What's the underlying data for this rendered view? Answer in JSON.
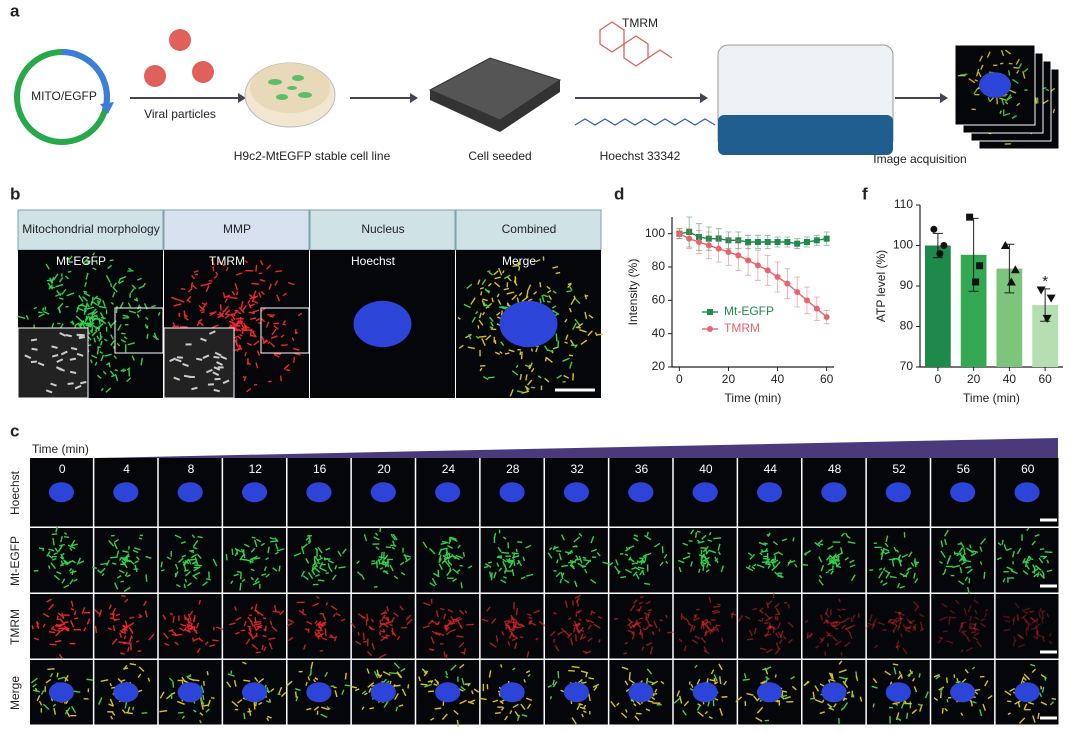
{
  "panel_a": {
    "label": "a",
    "plasmid": "MITO/EGFP",
    "virus": "Viral particles",
    "dish": "H9c2-MtEGFP stable cell line",
    "plate": "Cell seeded",
    "dye1": "TMRM",
    "dye2": "Hoechst 33342",
    "acquisition": "Image acquisition"
  },
  "panel_b": {
    "label": "b",
    "headers": [
      "Mitochondrial morphology",
      "MMP",
      "Nucleus",
      "Combined"
    ],
    "channels": [
      "Mt-EGFP",
      "TMRM",
      "Hoechst",
      "Merge"
    ]
  },
  "panel_c": {
    "label": "c",
    "axis_title": "Time (min)",
    "times": [
      0,
      4,
      8,
      12,
      16,
      20,
      24,
      28,
      32,
      36,
      40,
      44,
      48,
      52,
      56,
      60
    ],
    "rows": [
      "Hoechst",
      "Mt-EGFP",
      "TMRM",
      "Merge"
    ]
  },
  "chart_data": [
    {
      "type": "line",
      "panel_label": "d",
      "xlabel": "Time (min)",
      "ylabel": "Intensity (%)",
      "x": [
        0,
        4,
        8,
        12,
        16,
        20,
        24,
        28,
        32,
        36,
        40,
        44,
        48,
        52,
        56,
        60
      ],
      "series": [
        {
          "name": "Mt-EGFP",
          "color": "#1f8a4e",
          "marker": "square",
          "values": [
            100,
            101,
            98,
            97,
            97,
            96,
            96,
            95,
            95,
            95,
            95,
            95,
            94,
            95,
            96,
            97
          ],
          "errors": [
            3,
            9,
            8,
            7,
            6,
            5,
            5,
            4,
            4,
            4,
            3,
            3,
            3,
            3,
            3,
            4
          ]
        },
        {
          "name": "TMRM",
          "color": "#e8646a",
          "marker": "circle",
          "values": [
            100,
            97,
            95,
            93,
            91,
            89,
            87,
            84,
            81,
            78,
            74,
            70,
            65,
            60,
            55,
            50
          ],
          "errors": [
            3,
            6,
            7,
            8,
            8,
            8,
            9,
            9,
            9,
            9,
            9,
            9,
            9,
            8,
            7,
            4
          ]
        }
      ],
      "xlim": [
        -3,
        63
      ],
      "xticks": [
        0,
        20,
        40,
        60
      ],
      "ylim": [
        20,
        110
      ],
      "yticks": [
        20,
        40,
        60,
        80,
        100
      ],
      "legend": "center-right"
    },
    {
      "type": "bar",
      "panel_label": "f",
      "xlabel": "Time (min)",
      "ylabel": "ATP level (%)",
      "categories": [
        "0",
        "20",
        "40",
        "60"
      ],
      "values": [
        100,
        97.7,
        94.3,
        85.3
      ],
      "errors": [
        3,
        9,
        6,
        4
      ],
      "colors": [
        "#1e8a4a",
        "#33a852",
        "#7cc57a",
        "#b6dfb1"
      ],
      "points": [
        [
          104,
          100,
          98
        ],
        [
          107,
          95,
          91
        ],
        [
          100,
          94,
          91
        ],
        [
          89,
          87,
          82
        ]
      ],
      "point_markers": [
        "circle",
        "square",
        "triangle-up",
        "triangle-down"
      ],
      "significance": [
        null,
        null,
        null,
        "*"
      ],
      "ylim": [
        70,
        110
      ],
      "yticks": [
        70,
        80,
        90,
        100,
        110
      ]
    }
  ]
}
